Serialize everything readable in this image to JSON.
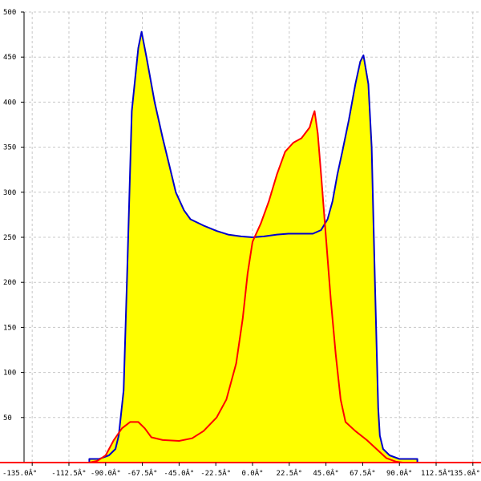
{
  "chart_data": {
    "type": "area",
    "x_ticks": [
      "-135.0Â°",
      "-112.5Â°",
      "-90.0Â°",
      "-67.5Â°",
      "-45.0Â°",
      "-22.5Â°",
      "0.0Â°",
      "22.5Â°",
      "45.0Â°",
      "67.5Â°",
      "90.0Â°",
      "112.5Â°",
      "135.0Â°"
    ],
    "x_tick_values": [
      -135,
      -112.5,
      -90,
      -67.5,
      -45,
      -22.5,
      0,
      22.5,
      45,
      67.5,
      90,
      112.5,
      135
    ],
    "y_ticks": [
      "50",
      "100",
      "150",
      "200",
      "250",
      "300",
      "350",
      "400",
      "450",
      "500"
    ],
    "y_tick_values": [
      50,
      100,
      150,
      200,
      250,
      300,
      350,
      400,
      450,
      500
    ],
    "xlim": [
      -140,
      140
    ],
    "ylim": [
      0,
      500
    ],
    "grid": true,
    "series": [
      {
        "color": "#0000cc",
        "fill": "#ffff00",
        "points": [
          [
            -100,
            0
          ],
          [
            -100,
            4
          ],
          [
            -94,
            4
          ],
          [
            -88,
            8
          ],
          [
            -84,
            15
          ],
          [
            -82,
            30
          ],
          [
            -79,
            80
          ],
          [
            -77,
            200
          ],
          [
            -74,
            390
          ],
          [
            -70,
            460
          ],
          [
            -68,
            478
          ],
          [
            -65,
            450
          ],
          [
            -60,
            400
          ],
          [
            -55,
            360
          ],
          [
            -51,
            330
          ],
          [
            -47,
            300
          ],
          [
            -42,
            280
          ],
          [
            -38,
            270
          ],
          [
            -30,
            263
          ],
          [
            -22,
            257
          ],
          [
            -15,
            253
          ],
          [
            -7,
            251
          ],
          [
            0,
            250
          ],
          [
            7,
            251
          ],
          [
            15,
            253
          ],
          [
            22,
            254
          ],
          [
            30,
            254
          ],
          [
            37,
            254
          ],
          [
            42,
            258
          ],
          [
            46,
            270
          ],
          [
            49,
            290
          ],
          [
            52,
            320
          ],
          [
            55,
            345
          ],
          [
            59,
            380
          ],
          [
            63,
            420
          ],
          [
            66,
            445
          ],
          [
            68,
            452
          ],
          [
            71,
            420
          ],
          [
            73,
            350
          ],
          [
            75,
            200
          ],
          [
            77,
            60
          ],
          [
            78,
            30
          ],
          [
            80,
            15
          ],
          [
            84,
            8
          ],
          [
            90,
            4
          ],
          [
            101,
            4
          ],
          [
            101,
            0
          ]
        ]
      },
      {
        "color": "#ff0000",
        "fill": "#ffff00",
        "points": [
          [
            -100,
            0
          ],
          [
            -95,
            2
          ],
          [
            -90,
            8
          ],
          [
            -85,
            25
          ],
          [
            -80,
            38
          ],
          [
            -75,
            45
          ],
          [
            -70,
            45
          ],
          [
            -66,
            38
          ],
          [
            -62,
            28
          ],
          [
            -55,
            25
          ],
          [
            -45,
            24
          ],
          [
            -37,
            27
          ],
          [
            -30,
            35
          ],
          [
            -22,
            50
          ],
          [
            -16,
            70
          ],
          [
            -10,
            110
          ],
          [
            -6,
            160
          ],
          [
            -3,
            210
          ],
          [
            0,
            245
          ],
          [
            5,
            265
          ],
          [
            10,
            290
          ],
          [
            15,
            320
          ],
          [
            20,
            345
          ],
          [
            25,
            355
          ],
          [
            30,
            360
          ],
          [
            35,
            372
          ],
          [
            37,
            385
          ],
          [
            38,
            390
          ],
          [
            40,
            365
          ],
          [
            42,
            320
          ],
          [
            45,
            250
          ],
          [
            48,
            180
          ],
          [
            51,
            120
          ],
          [
            54,
            70
          ],
          [
            57,
            45
          ],
          [
            63,
            35
          ],
          [
            70,
            25
          ],
          [
            76,
            15
          ],
          [
            82,
            5
          ],
          [
            88,
            1
          ],
          [
            92,
            0
          ]
        ]
      }
    ]
  }
}
